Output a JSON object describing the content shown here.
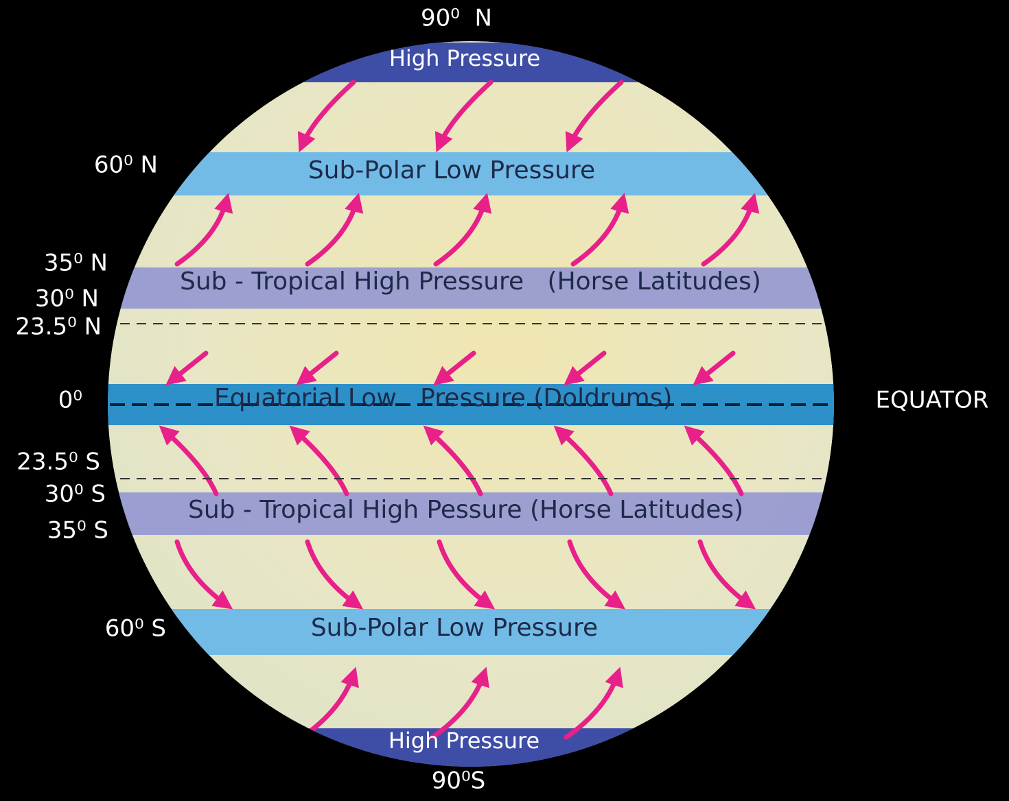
{
  "poles": {
    "north": "90⁰  N",
    "south": "90⁰S"
  },
  "latitude_labels": [
    "60⁰ N",
    "35⁰ N",
    "30⁰ N",
    "23.5⁰ N",
    "0⁰",
    "23.5⁰ S",
    "30⁰ S",
    "35⁰ S",
    "60⁰ S"
  ],
  "equator_label": "EQUATOR",
  "belts": [
    "High Pressure",
    "Sub-Polar Low Pressure",
    "Sub - Tropical High Pressure   (Horse Latitudes)",
    "Equatorial Low   Pressure (Doldrums)",
    "Sub - Tropical High Pessure (Horse Latitudes)",
    "Sub-Polar Low Pressure",
    "High Pressure"
  ]
}
